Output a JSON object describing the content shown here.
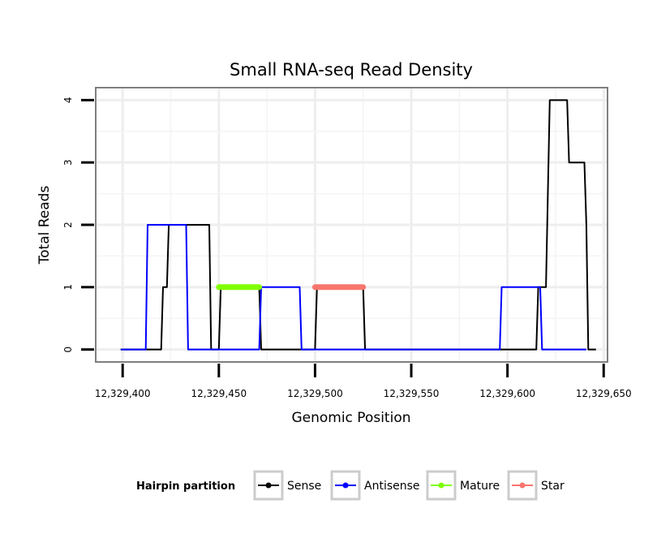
{
  "chart_data": {
    "type": "line",
    "title": "Small RNA-seq Read Density",
    "xlabel": "Genomic Position",
    "ylabel": "Total Reads",
    "xlim": [
      12329386,
      12329652
    ],
    "ylim": [
      -0.2,
      4.2
    ],
    "x_ticks": [
      12329400,
      12329450,
      12329500,
      12329550,
      12329600,
      12329650
    ],
    "x_tick_labels": [
      "12,329,400",
      "12,329,450",
      "12,329,500",
      "12,329,550",
      "12,329,600",
      "12,329,650"
    ],
    "y_ticks": [
      0,
      1,
      2,
      3,
      4
    ],
    "y_tick_labels": [
      "0",
      "1",
      "2",
      "3",
      "4"
    ],
    "grid": true,
    "legend": {
      "title": "Hairpin partition",
      "position": "bottom",
      "items": [
        "Sense",
        "Antisense",
        "Mature",
        "Star"
      ]
    },
    "series": [
      {
        "name": "Sense",
        "color": "#000000",
        "x": [
          12329399,
          12329420,
          12329421,
          12329423,
          12329424,
          12329426,
          12329445,
          12329446,
          12329450,
          12329451,
          12329471,
          12329472,
          12329500,
          12329501,
          12329525,
          12329526,
          12329615,
          12329616,
          12329620,
          12329622,
          12329631,
          12329632,
          12329640,
          12329641,
          12329642,
          12329646
        ],
        "values": [
          0,
          0,
          1,
          1,
          2,
          2,
          2,
          0,
          0,
          1,
          1,
          0,
          0,
          1,
          1,
          0,
          0,
          1,
          1,
          4,
          4,
          3,
          3,
          2,
          0,
          0
        ]
      },
      {
        "name": "Antisense",
        "color": "#0000ff",
        "x": [
          12329399,
          12329412,
          12329413,
          12329433,
          12329434,
          12329471,
          12329472,
          12329492,
          12329493,
          12329596,
          12329597,
          12329617,
          12329618,
          12329641
        ],
        "values": [
          0,
          0,
          2,
          2,
          0,
          0,
          1,
          1,
          0,
          0,
          1,
          1,
          0,
          0
        ]
      },
      {
        "name": "Mature",
        "color": "#80ff00",
        "x": [
          12329450,
          12329471
        ],
        "values": [
          1,
          1
        ]
      },
      {
        "name": "Star",
        "color": "#f8766d",
        "x": [
          12329500,
          12329525
        ],
        "values": [
          1,
          1
        ]
      }
    ]
  }
}
